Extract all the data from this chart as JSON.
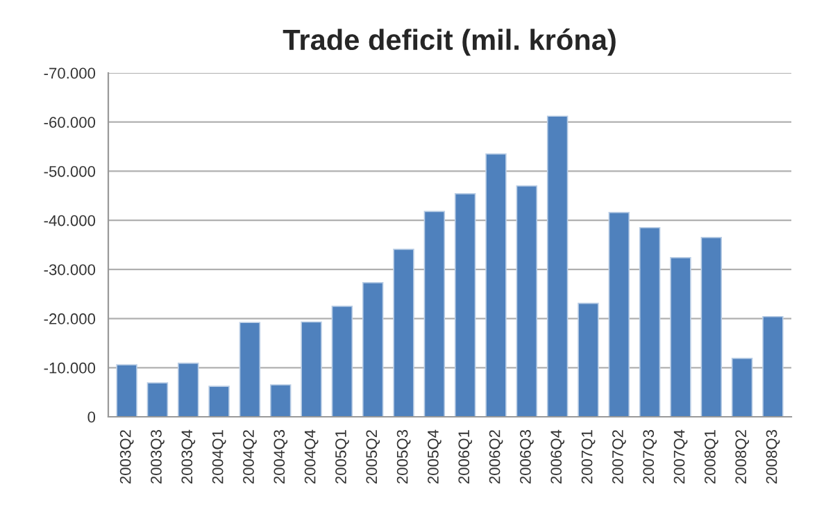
{
  "chart_data": {
    "type": "bar",
    "title": "Trade deficit (mil. króna)",
    "categories": [
      "2003Q2",
      "2003Q3",
      "2003Q4",
      "2004Q1",
      "2004Q2",
      "2004Q3",
      "2004Q4",
      "2005Q1",
      "2005Q2",
      "2005Q3",
      "2005Q4",
      "2006Q1",
      "2006Q2",
      "2006Q3",
      "2006Q4",
      "2007Q1",
      "2007Q2",
      "2007Q3",
      "2007Q4",
      "2008Q1",
      "2008Q2",
      "2008Q3"
    ],
    "values": [
      -10600,
      -6900,
      -10900,
      -6200,
      -19200,
      -6500,
      -19300,
      -22500,
      -27300,
      -34100,
      -41800,
      -45400,
      -53500,
      -47000,
      -61200,
      -23100,
      -41600,
      -38500,
      -32400,
      -36500,
      -11900,
      -20400
    ],
    "color": "#4f81bd",
    "ylim": [
      0,
      -70000
    ],
    "yticks": [
      0,
      {
        "value": -10000,
        "label": "-10.000"
      },
      {
        "value": -20000,
        "label": "-20.000"
      },
      {
        "value": -30000,
        "label": "-30.000"
      },
      {
        "value": -40000,
        "label": "-40.000"
      },
      {
        "value": -50000,
        "label": "-50.000"
      },
      {
        "value": -60000,
        "label": "-60.000"
      },
      {
        "value": -70000,
        "label": "-70.000"
      }
    ],
    "grid": "y",
    "legend": false
  }
}
